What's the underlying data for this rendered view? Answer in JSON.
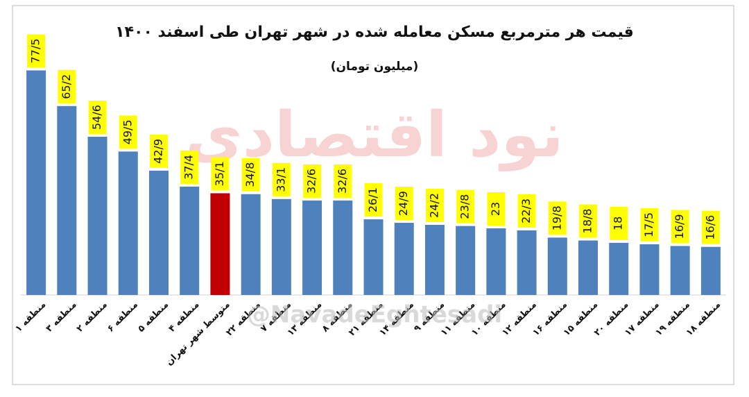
{
  "chart_data": {
    "type": "bar",
    "title": "قیمت هر مترمربع مسکن معامله شده در  شهر تهران طی اسفند ۱۴۰۰",
    "subtitle": "(میلیون تومان)",
    "watermark": "@NavadeEghtesadi",
    "logo_text": "نود اقتصادی",
    "categories": [
      "منطقه ۱",
      "منطقه ۳",
      "منطقه ۲",
      "منطقه ۶",
      "منطقه ۵",
      "منطقه ۴",
      "متوسط شهر تهران",
      "منطقه ۲۲",
      "منطقه ۷",
      "منطقه ۱۳",
      "منطقه ۸",
      "منطقه ۲۱",
      "منطقه ۱۴",
      "منطقه ۹",
      "منطقه ۱۱",
      "منطقه ۱۰",
      "منطقه ۱۲",
      "منطقه ۱۶",
      "منطقه ۱۵",
      "منطقه ۲۰",
      "منطقه ۱۷",
      "منطقه ۱۹",
      "منطقه ۱۸"
    ],
    "values": [
      77.5,
      65.2,
      54.6,
      49.5,
      42.9,
      37.4,
      35.1,
      34.8,
      33.1,
      32.6,
      32.6,
      26.1,
      24.9,
      24.2,
      23.8,
      23,
      22.3,
      19.8,
      18.8,
      18,
      17.5,
      16.9,
      16.6
    ],
    "value_labels": [
      "77/5",
      "65/2",
      "54/6",
      "49/5",
      "42/9",
      "37/4",
      "35/1",
      "34/8",
      "33/1",
      "32/6",
      "32/6",
      "26/1",
      "24/9",
      "24/2",
      "23/8",
      "23",
      "22/3",
      "19/8",
      "18/8",
      "18",
      "17/5",
      "16/9",
      "16/6"
    ],
    "colors": [
      "#4f81bd",
      "#4f81bd",
      "#4f81bd",
      "#4f81bd",
      "#4f81bd",
      "#4f81bd",
      "#c00000",
      "#4f81bd",
      "#4f81bd",
      "#4f81bd",
      "#4f81bd",
      "#4f81bd",
      "#4f81bd",
      "#4f81bd",
      "#4f81bd",
      "#4f81bd",
      "#4f81bd",
      "#4f81bd",
      "#4f81bd",
      "#4f81bd",
      "#4f81bd",
      "#4f81bd",
      "#4f81bd"
    ],
    "label_box_color": "#ffff00",
    "ylim": [
      0,
      80
    ]
  }
}
